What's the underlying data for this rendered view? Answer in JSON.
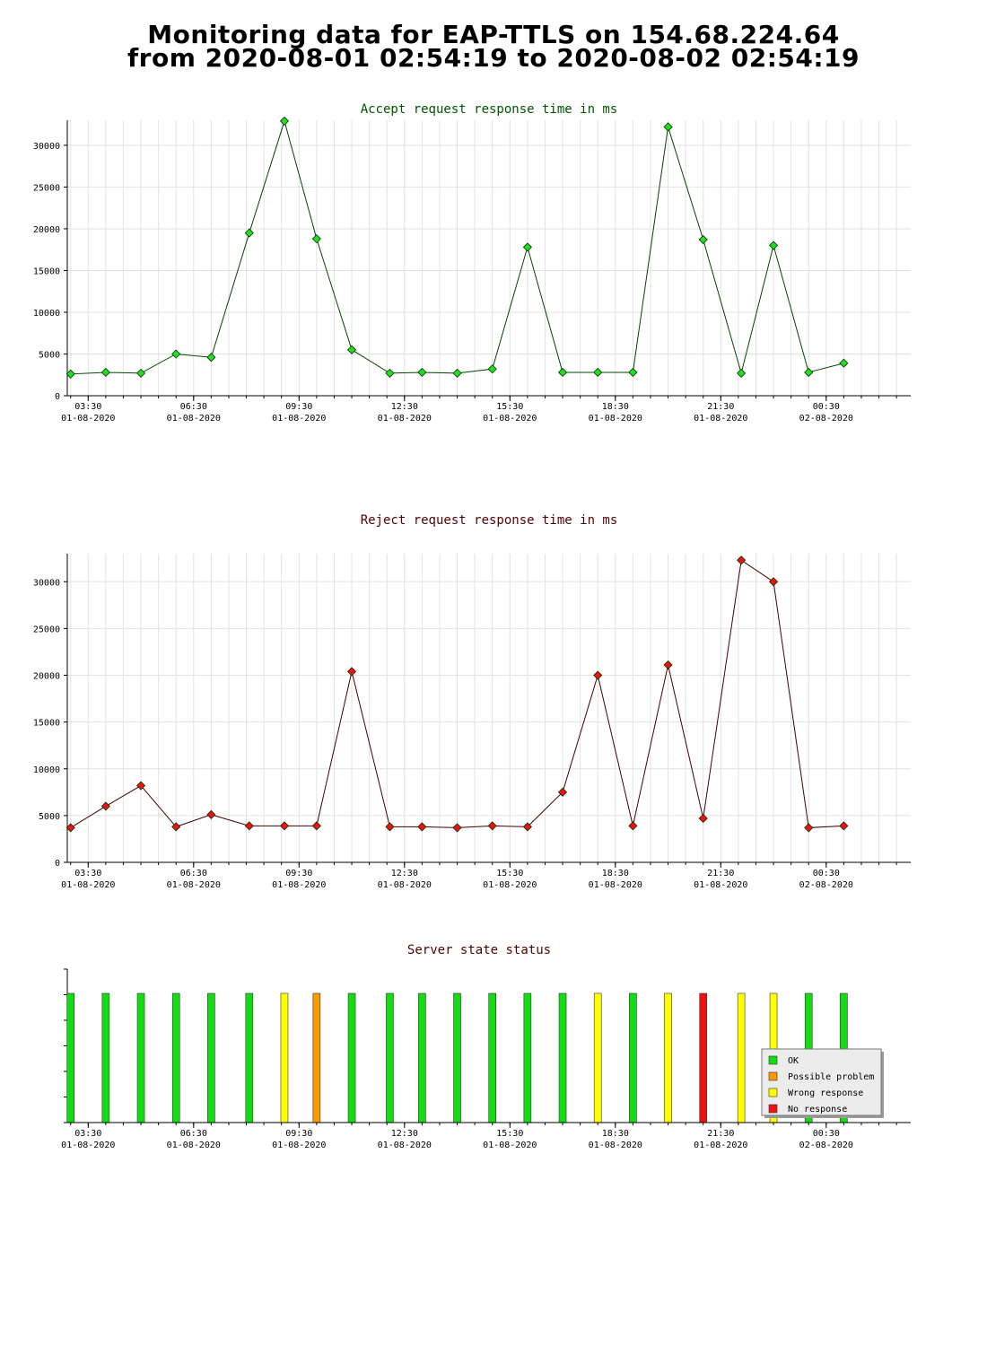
{
  "page": {
    "title_line1": "Monitoring data for EAP-TTLS on 154.68.224.64",
    "title_line2": "from 2020-08-01 02:54:19 to 2020-08-02 02:54:19"
  },
  "x_axis": {
    "ticks": [
      {
        "time": "03:30",
        "date": "01-08-2020"
      },
      {
        "time": "06:30",
        "date": "01-08-2020"
      },
      {
        "time": "09:30",
        "date": "01-08-2020"
      },
      {
        "time": "12:30",
        "date": "01-08-2020"
      },
      {
        "time": "15:30",
        "date": "01-08-2020"
      },
      {
        "time": "18:30",
        "date": "01-08-2020"
      },
      {
        "time": "21:30",
        "date": "01-08-2020"
      },
      {
        "time": "00:30",
        "date": "02-08-2020"
      }
    ]
  },
  "chart_data": [
    {
      "type": "line",
      "title": "Accept request response time in ms",
      "title_color": "#005500",
      "line_color": "#004400",
      "marker_color": "#22dd22",
      "ylim": [
        0,
        33000
      ],
      "yticks": [
        0,
        5000,
        10000,
        15000,
        20000,
        25000,
        30000
      ],
      "x": [
        "2020-08-01 03:00",
        "2020-08-01 04:00",
        "2020-08-01 05:00",
        "2020-08-01 06:00",
        "2020-08-01 07:00",
        "2020-08-01 08:05",
        "2020-08-01 09:05",
        "2020-08-01 10:00",
        "2020-08-01 11:00",
        "2020-08-01 12:05",
        "2020-08-01 13:00",
        "2020-08-01 14:00",
        "2020-08-01 15:00",
        "2020-08-01 16:00",
        "2020-08-01 17:00",
        "2020-08-01 18:00",
        "2020-08-01 19:00",
        "2020-08-01 20:00",
        "2020-08-01 21:00",
        "2020-08-01 22:05",
        "2020-08-01 23:00",
        "2020-08-02 00:00",
        "2020-08-02 01:00"
      ],
      "values": [
        2600,
        2800,
        2700,
        5000,
        4600,
        19500,
        32900,
        18800,
        5500,
        2700,
        2800,
        2700,
        3200,
        17800,
        2800,
        2800,
        2800,
        32200,
        18700,
        2700,
        18000,
        2800,
        3900
      ],
      "grid": true
    },
    {
      "type": "line",
      "title": "Reject request response time in ms",
      "title_color": "#550000",
      "line_color": "#440000",
      "marker_color": "#ee1111",
      "ylim": [
        0,
        33000
      ],
      "yticks": [
        0,
        5000,
        10000,
        15000,
        20000,
        25000,
        30000
      ],
      "x": [
        "2020-08-01 03:00",
        "2020-08-01 04:00",
        "2020-08-01 05:00",
        "2020-08-01 06:00",
        "2020-08-01 07:00",
        "2020-08-01 08:05",
        "2020-08-01 09:05",
        "2020-08-01 10:00",
        "2020-08-01 11:00",
        "2020-08-01 12:05",
        "2020-08-01 13:00",
        "2020-08-01 14:00",
        "2020-08-01 15:00",
        "2020-08-01 16:00",
        "2020-08-01 17:00",
        "2020-08-01 18:00",
        "2020-08-01 19:00",
        "2020-08-01 20:00",
        "2020-08-01 21:00",
        "2020-08-01 22:05",
        "2020-08-01 23:00",
        "2020-08-02 00:00",
        "2020-08-02 01:00"
      ],
      "values": [
        3700,
        6000,
        8200,
        3800,
        5100,
        3900,
        3900,
        3900,
        20400,
        3800,
        3800,
        3700,
        3900,
        3800,
        7500,
        20000,
        3900,
        21100,
        4700,
        32300,
        30000,
        3700,
        3900
      ],
      "grid": true
    },
    {
      "type": "bar",
      "title": "Server state status",
      "title_color": "#550000",
      "x": [
        "2020-08-01 03:00",
        "2020-08-01 04:00",
        "2020-08-01 05:00",
        "2020-08-01 06:00",
        "2020-08-01 07:00",
        "2020-08-01 08:05",
        "2020-08-01 09:05",
        "2020-08-01 10:00",
        "2020-08-01 11:00",
        "2020-08-01 12:05",
        "2020-08-01 13:00",
        "2020-08-01 14:00",
        "2020-08-01 15:00",
        "2020-08-01 16:00",
        "2020-08-01 17:00",
        "2020-08-01 18:00",
        "2020-08-01 19:00",
        "2020-08-01 20:00",
        "2020-08-01 21:00",
        "2020-08-01 22:05",
        "2020-08-01 23:00",
        "2020-08-02 00:00",
        "2020-08-02 01:00"
      ],
      "status": [
        "ok",
        "ok",
        "ok",
        "ok",
        "ok",
        "ok",
        "wrong",
        "possible",
        "ok",
        "ok",
        "ok",
        "ok",
        "ok",
        "ok",
        "ok",
        "wrong",
        "ok",
        "wrong",
        "none",
        "wrong",
        "wrong",
        "ok",
        "ok"
      ],
      "legend_position": "bottom-right",
      "legend": [
        {
          "key": "ok",
          "label": "OK",
          "color": "#11dd11"
        },
        {
          "key": "possible",
          "label": "Possible problem",
          "color": "#ff9900"
        },
        {
          "key": "wrong",
          "label": "Wrong response",
          "color": "#ffff00"
        },
        {
          "key": "none",
          "label": "No response",
          "color": "#ee1111"
        }
      ]
    }
  ]
}
